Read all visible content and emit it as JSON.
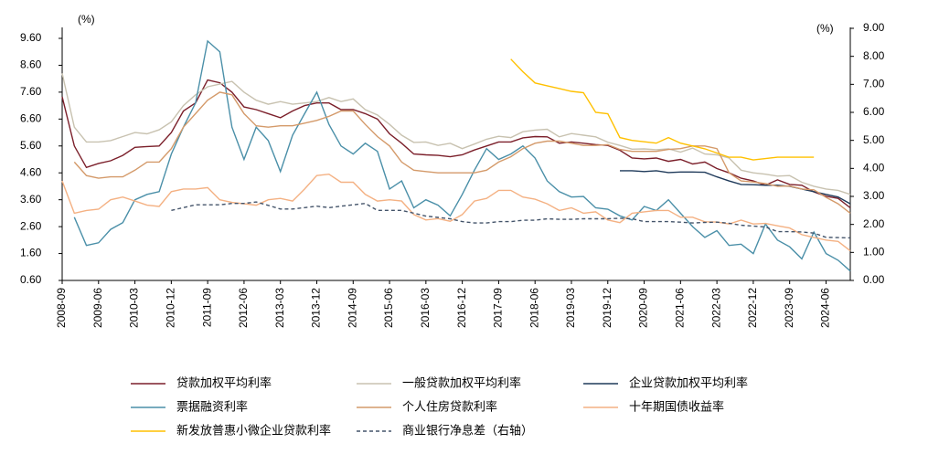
{
  "chart_data": {
    "type": "line",
    "ylabel": "(%)",
    "y2label": "(%)",
    "categories": [
      "2008-09",
      null,
      null,
      "2009-06",
      null,
      null,
      "2010-03",
      null,
      null,
      "2010-12",
      null,
      null,
      "2011-09",
      null,
      null,
      "2012-06",
      null,
      null,
      "2013-03",
      null,
      null,
      "2013-12",
      null,
      null,
      "2014-09",
      null,
      null,
      "2015-06",
      null,
      null,
      "2016-03",
      null,
      null,
      "2016-12",
      null,
      null,
      "2017-09",
      null,
      null,
      "2018-06",
      null,
      null,
      "2019-03",
      null,
      null,
      "2019-12",
      null,
      null,
      "2020-09",
      null,
      null,
      "2021-06",
      null,
      null,
      "2022-03",
      null,
      null,
      "2022-12",
      null,
      null,
      "2023-09",
      null,
      null,
      "2024-06",
      null,
      null
    ],
    "ylim": [
      0.6,
      9.6
    ],
    "yticks": [
      {
        "value": 0.6,
        "label": "0.60"
      },
      {
        "value": 1.6,
        "label": "1.60"
      },
      {
        "value": 2.6,
        "label": "2.60"
      },
      {
        "value": 3.6,
        "label": "3.60"
      },
      {
        "value": 4.6,
        "label": "4.60"
      },
      {
        "value": 5.6,
        "label": "5.60"
      },
      {
        "value": 6.6,
        "label": "6.60"
      },
      {
        "value": 7.6,
        "label": "7.60"
      },
      {
        "value": 8.6,
        "label": "8.60"
      },
      {
        "value": 9.6,
        "label": "9.60"
      }
    ],
    "y2lim": [
      0,
      9
    ],
    "y2ticks": [
      {
        "value": 0,
        "label": "0.00"
      },
      {
        "value": 1,
        "label": "1.00"
      },
      {
        "value": 2,
        "label": "2.00"
      },
      {
        "value": 3,
        "label": "3.00"
      },
      {
        "value": 4,
        "label": "4.00"
      },
      {
        "value": 5,
        "label": "5.00"
      },
      {
        "value": 6,
        "label": "6.00"
      },
      {
        "value": 7,
        "label": "7.00"
      },
      {
        "value": 8,
        "label": "8.00"
      },
      {
        "value": 9,
        "label": "9.00"
      }
    ],
    "legend": "bottom",
    "series": [
      {
        "name": "贷款加权平均利率",
        "color": "#7b1f2a",
        "values": [
          7.43,
          5.6,
          4.8,
          4.95,
          5.05,
          5.25,
          5.55,
          5.58,
          5.6,
          6.1,
          6.9,
          7.2,
          8.05,
          7.95,
          7.6,
          7.05,
          6.95,
          6.8,
          6.65,
          6.9,
          7.1,
          7.2,
          7.2,
          6.95,
          6.95,
          6.8,
          6.6,
          6.05,
          5.7,
          5.3,
          5.27,
          5.25,
          5.2,
          5.27,
          5.45,
          5.6,
          5.75,
          5.75,
          5.9,
          5.95,
          5.94,
          5.7,
          5.75,
          5.7,
          5.65,
          5.62,
          5.44,
          5.15,
          5.12,
          5.15,
          5.03,
          5.1,
          4.93,
          5.0,
          4.76,
          4.6,
          4.4,
          4.3,
          4.14,
          4.34,
          4.17,
          4.14,
          3.89,
          3.73,
          3.65,
          3.3
        ]
      },
      {
        "name": "一般贷款加权平均利率",
        "color": "#c8c2b0",
        "values": [
          8.3,
          6.3,
          5.75,
          5.75,
          5.8,
          5.95,
          6.1,
          6.05,
          6.2,
          6.5,
          7.1,
          7.5,
          7.8,
          7.9,
          8.0,
          7.6,
          7.3,
          7.15,
          7.25,
          7.15,
          7.2,
          7.25,
          7.4,
          7.25,
          7.35,
          6.95,
          6.75,
          6.4,
          6.0,
          5.73,
          5.75,
          5.62,
          5.7,
          5.5,
          5.67,
          5.85,
          5.96,
          5.91,
          6.13,
          6.19,
          6.22,
          5.94,
          6.06,
          6.0,
          5.94,
          5.74,
          5.62,
          5.48,
          5.49,
          5.46,
          5.49,
          5.37,
          5.52,
          5.3,
          5.27,
          5.15,
          4.7,
          4.6,
          4.55,
          4.48,
          4.5,
          4.25,
          4.1,
          4.0,
          3.95,
          3.8
        ]
      },
      {
        "name": "企业贷款加权平均利率",
        "color": "#1f3a5a",
        "values": [
          null,
          null,
          null,
          null,
          null,
          null,
          null,
          null,
          null,
          null,
          null,
          null,
          null,
          null,
          null,
          null,
          null,
          null,
          null,
          null,
          null,
          null,
          null,
          null,
          null,
          null,
          null,
          null,
          null,
          null,
          null,
          null,
          null,
          null,
          null,
          null,
          null,
          null,
          null,
          null,
          null,
          null,
          null,
          null,
          null,
          null,
          4.68,
          4.68,
          4.65,
          4.68,
          4.61,
          4.63,
          4.63,
          4.62,
          4.45,
          4.3,
          4.17,
          4.16,
          4.14,
          4.14,
          4.1,
          4.0,
          3.9,
          3.8,
          3.7,
          3.45
        ]
      },
      {
        "name": "票据融资利率",
        "color": "#4a8fa8",
        "values": [
          null,
          2.95,
          1.9,
          2.0,
          2.5,
          2.75,
          3.6,
          3.8,
          3.9,
          5.3,
          6.3,
          7.2,
          9.5,
          9.1,
          6.3,
          5.1,
          6.3,
          5.8,
          4.65,
          6.0,
          6.8,
          7.6,
          6.4,
          5.6,
          5.3,
          5.7,
          5.4,
          4.0,
          4.3,
          3.3,
          3.6,
          3.4,
          3.0,
          3.8,
          4.7,
          5.5,
          5.1,
          5.3,
          5.6,
          5.15,
          4.3,
          3.9,
          3.7,
          3.72,
          3.3,
          3.25,
          3.0,
          2.85,
          3.35,
          3.2,
          3.6,
          3.1,
          2.6,
          2.2,
          2.45,
          1.9,
          1.95,
          1.6,
          2.7,
          2.1,
          1.85,
          1.4,
          2.4,
          1.6,
          1.35,
          0.95
        ]
      },
      {
        "name": "个人住房贷款利率",
        "color": "#d49a6a",
        "values": [
          null,
          5.0,
          4.5,
          4.4,
          4.45,
          4.45,
          4.7,
          5.0,
          5.0,
          5.5,
          6.3,
          6.8,
          7.3,
          7.6,
          7.5,
          6.8,
          6.35,
          6.3,
          6.35,
          6.35,
          6.45,
          6.55,
          6.7,
          6.9,
          6.9,
          6.4,
          5.95,
          5.6,
          5.0,
          4.7,
          4.65,
          4.6,
          4.6,
          4.6,
          4.6,
          4.7,
          5.0,
          5.2,
          5.5,
          5.7,
          5.78,
          5.78,
          5.7,
          5.62,
          5.62,
          5.65,
          5.47,
          5.4,
          5.4,
          5.4,
          5.47,
          5.5,
          5.6,
          5.6,
          5.5,
          4.6,
          4.3,
          4.26,
          4.2,
          4.1,
          4.11,
          4.0,
          3.97,
          3.69,
          3.45,
          3.1
        ]
      },
      {
        "name": "十年期国债收益率",
        "color": "#f4b183",
        "values": [
          4.3,
          3.1,
          3.2,
          3.25,
          3.6,
          3.7,
          3.55,
          3.4,
          3.35,
          3.9,
          4.0,
          4.0,
          4.05,
          3.6,
          3.5,
          3.45,
          3.4,
          3.6,
          3.65,
          3.55,
          4.0,
          4.5,
          4.55,
          4.25,
          4.25,
          3.8,
          3.55,
          3.6,
          3.55,
          3.05,
          2.85,
          2.9,
          2.8,
          3.05,
          3.55,
          3.65,
          3.95,
          3.95,
          3.7,
          3.62,
          3.45,
          3.2,
          3.3,
          3.1,
          3.15,
          2.85,
          2.75,
          3.1,
          3.15,
          3.2,
          3.2,
          2.95,
          2.95,
          2.78,
          2.77,
          2.7,
          2.84,
          2.7,
          2.72,
          2.63,
          2.55,
          2.3,
          2.2,
          2.1,
          2.05,
          1.7
        ]
      },
      {
        "name": "新发放普惠小微企业贷款利率",
        "color": "#ffc000",
        "axis": "y2",
        "values": [
          null,
          null,
          null,
          null,
          null,
          null,
          null,
          null,
          null,
          null,
          null,
          null,
          null,
          null,
          null,
          null,
          null,
          null,
          null,
          null,
          null,
          null,
          null,
          null,
          null,
          null,
          null,
          null,
          null,
          null,
          null,
          null,
          null,
          null,
          null,
          null,
          null,
          7.9,
          7.45,
          7.05,
          6.95,
          6.85,
          6.75,
          6.7,
          6.0,
          5.95,
          5.1,
          5.0,
          4.95,
          4.9,
          5.1,
          4.9,
          4.8,
          4.7,
          4.55,
          4.4,
          4.4,
          4.3,
          4.35,
          4.4,
          4.4,
          4.4,
          4.4,
          null,
          null,
          null
        ]
      },
      {
        "name": "商业银行净息差（右轴）",
        "color": "#44546a",
        "axis": "y2",
        "style": "dashed",
        "values": [
          null,
          null,
          null,
          null,
          null,
          null,
          null,
          null,
          null,
          2.5,
          2.6,
          2.7,
          2.7,
          2.7,
          2.75,
          2.75,
          2.8,
          2.68,
          2.55,
          2.55,
          2.6,
          2.65,
          2.6,
          2.65,
          2.7,
          2.75,
          2.5,
          2.5,
          2.5,
          2.4,
          2.3,
          2.25,
          2.2,
          2.1,
          2.05,
          2.05,
          2.1,
          2.1,
          2.15,
          2.15,
          2.2,
          2.18,
          2.18,
          2.2,
          2.2,
          2.2,
          2.22,
          2.2,
          2.1,
          2.1,
          2.1,
          2.08,
          2.05,
          2.07,
          2.08,
          2.04,
          1.97,
          1.94,
          1.91,
          1.74,
          1.74,
          1.73,
          1.69,
          1.54,
          1.53,
          1.52
        ]
      }
    ]
  }
}
